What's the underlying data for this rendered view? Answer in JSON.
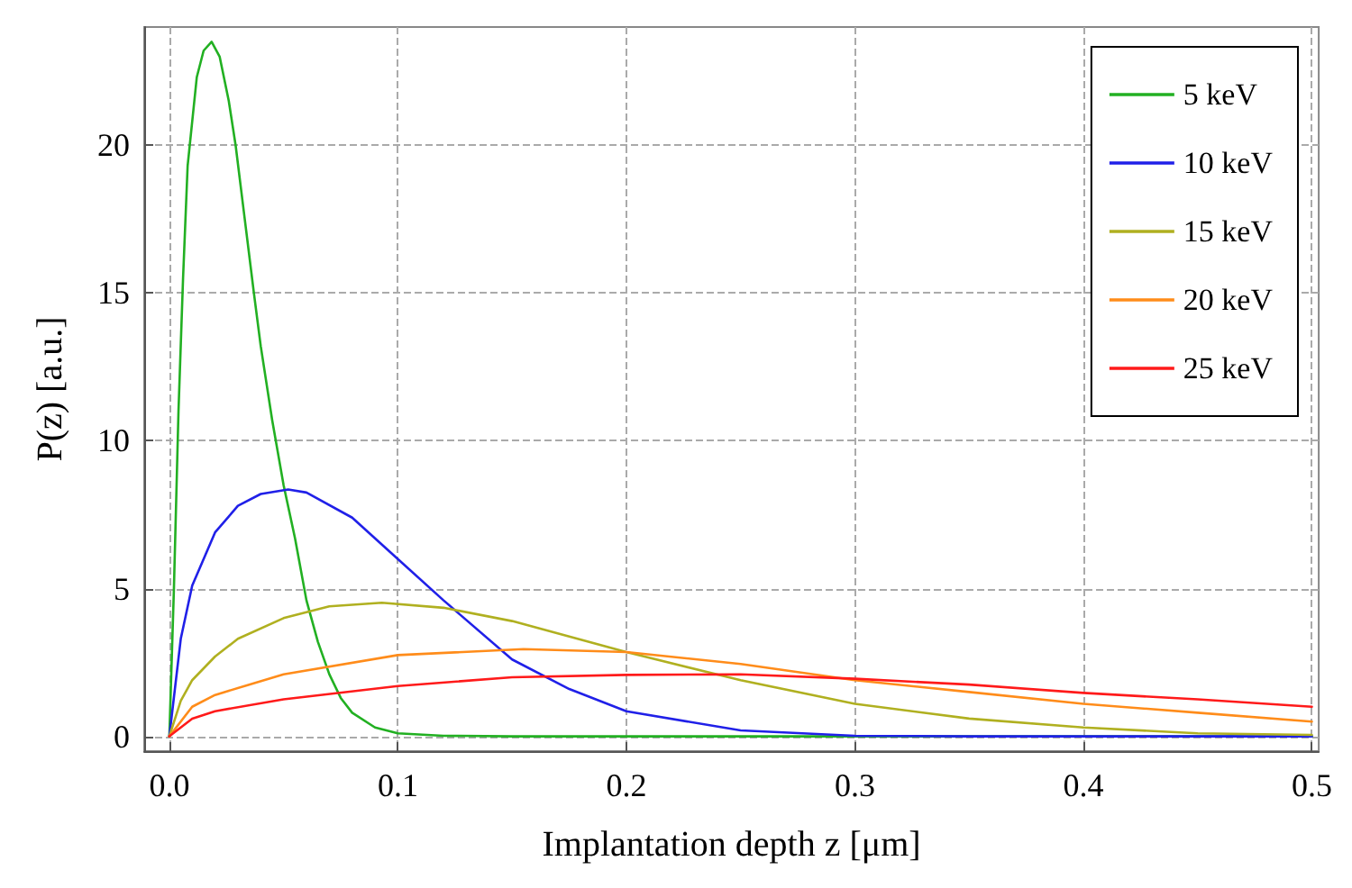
{
  "chart_data": {
    "type": "line",
    "xlabel": "Implantation depth z [μm]",
    "ylabel": "P(z) [a.u.]",
    "xlim": [
      -0.011,
      0.503
    ],
    "ylim": [
      -0.5,
      24
    ],
    "xticks": [
      {
        "value": 0,
        "label": "0.0"
      },
      0.1,
      0.2,
      0.3,
      0.4,
      0.5
    ],
    "yticks": [
      0,
      5,
      10,
      15,
      20
    ],
    "grid": true,
    "legend": "top right",
    "marker": "none",
    "line_style": "solid",
    "series": [
      {
        "name": "5 keV",
        "color": "#22b022",
        "x": [
          0,
          0.002,
          0.004,
          0.006,
          0.008,
          0.012,
          0.015,
          0.0185,
          0.022,
          0.026,
          0.029,
          0.033,
          0.037,
          0.04,
          0.045,
          0.05,
          0.055,
          0.06,
          0.065,
          0.07,
          0.075,
          0.08,
          0.09,
          0.1,
          0.12,
          0.15,
          0.2,
          0.3,
          0.4,
          0.5
        ],
        "values": [
          0,
          5,
          11,
          15.5,
          19.3,
          22.3,
          23.2,
          23.5,
          23,
          21.5,
          20,
          17.5,
          15,
          13.2,
          10.7,
          8.5,
          6.7,
          4.6,
          3.2,
          2.1,
          1.3,
          0.8,
          0.3,
          0.1,
          0.02,
          0,
          0,
          0,
          0,
          0
        ]
      },
      {
        "name": "10 keV",
        "color": "#2020e8",
        "x": [
          0,
          0.005,
          0.01,
          0.02,
          0.03,
          0.04,
          0.052,
          0.06,
          0.08,
          0.1,
          0.12,
          0.15,
          0.175,
          0.2,
          0.25,
          0.3,
          0.35,
          0.4,
          0.5
        ],
        "values": [
          0,
          3.3,
          5.1,
          6.9,
          7.8,
          8.2,
          8.35,
          8.25,
          7.4,
          6,
          4.6,
          2.6,
          1.6,
          0.85,
          0.2,
          0.02,
          0,
          0,
          0
        ]
      },
      {
        "name": "15 keV",
        "color": "#b0b020",
        "x": [
          0,
          0.005,
          0.01,
          0.02,
          0.03,
          0.05,
          0.07,
          0.093,
          0.12,
          0.15,
          0.2,
          0.25,
          0.3,
          0.35,
          0.4,
          0.45,
          0.5
        ],
        "values": [
          0,
          1.2,
          1.9,
          2.7,
          3.3,
          4,
          4.4,
          4.52,
          4.35,
          3.9,
          2.85,
          1.9,
          1.1,
          0.6,
          0.3,
          0.1,
          0.05
        ]
      },
      {
        "name": "20 keV",
        "color": "#ff8c1a",
        "x": [
          0,
          0.01,
          0.02,
          0.05,
          0.1,
          0.155,
          0.2,
          0.25,
          0.3,
          0.35,
          0.4,
          0.45,
          0.5
        ],
        "values": [
          0,
          1,
          1.4,
          2.1,
          2.75,
          2.95,
          2.85,
          2.45,
          1.9,
          1.5,
          1.1,
          0.8,
          0.5
        ]
      },
      {
        "name": "25 keV",
        "color": "#ff1a1a",
        "x": [
          0,
          0.01,
          0.02,
          0.05,
          0.1,
          0.15,
          0.2,
          0.25,
          0.3,
          0.35,
          0.4,
          0.45,
          0.5
        ],
        "values": [
          0,
          0.6,
          0.85,
          1.25,
          1.7,
          2,
          2.08,
          2.1,
          1.95,
          1.75,
          1.47,
          1.25,
          1
        ]
      }
    ]
  }
}
